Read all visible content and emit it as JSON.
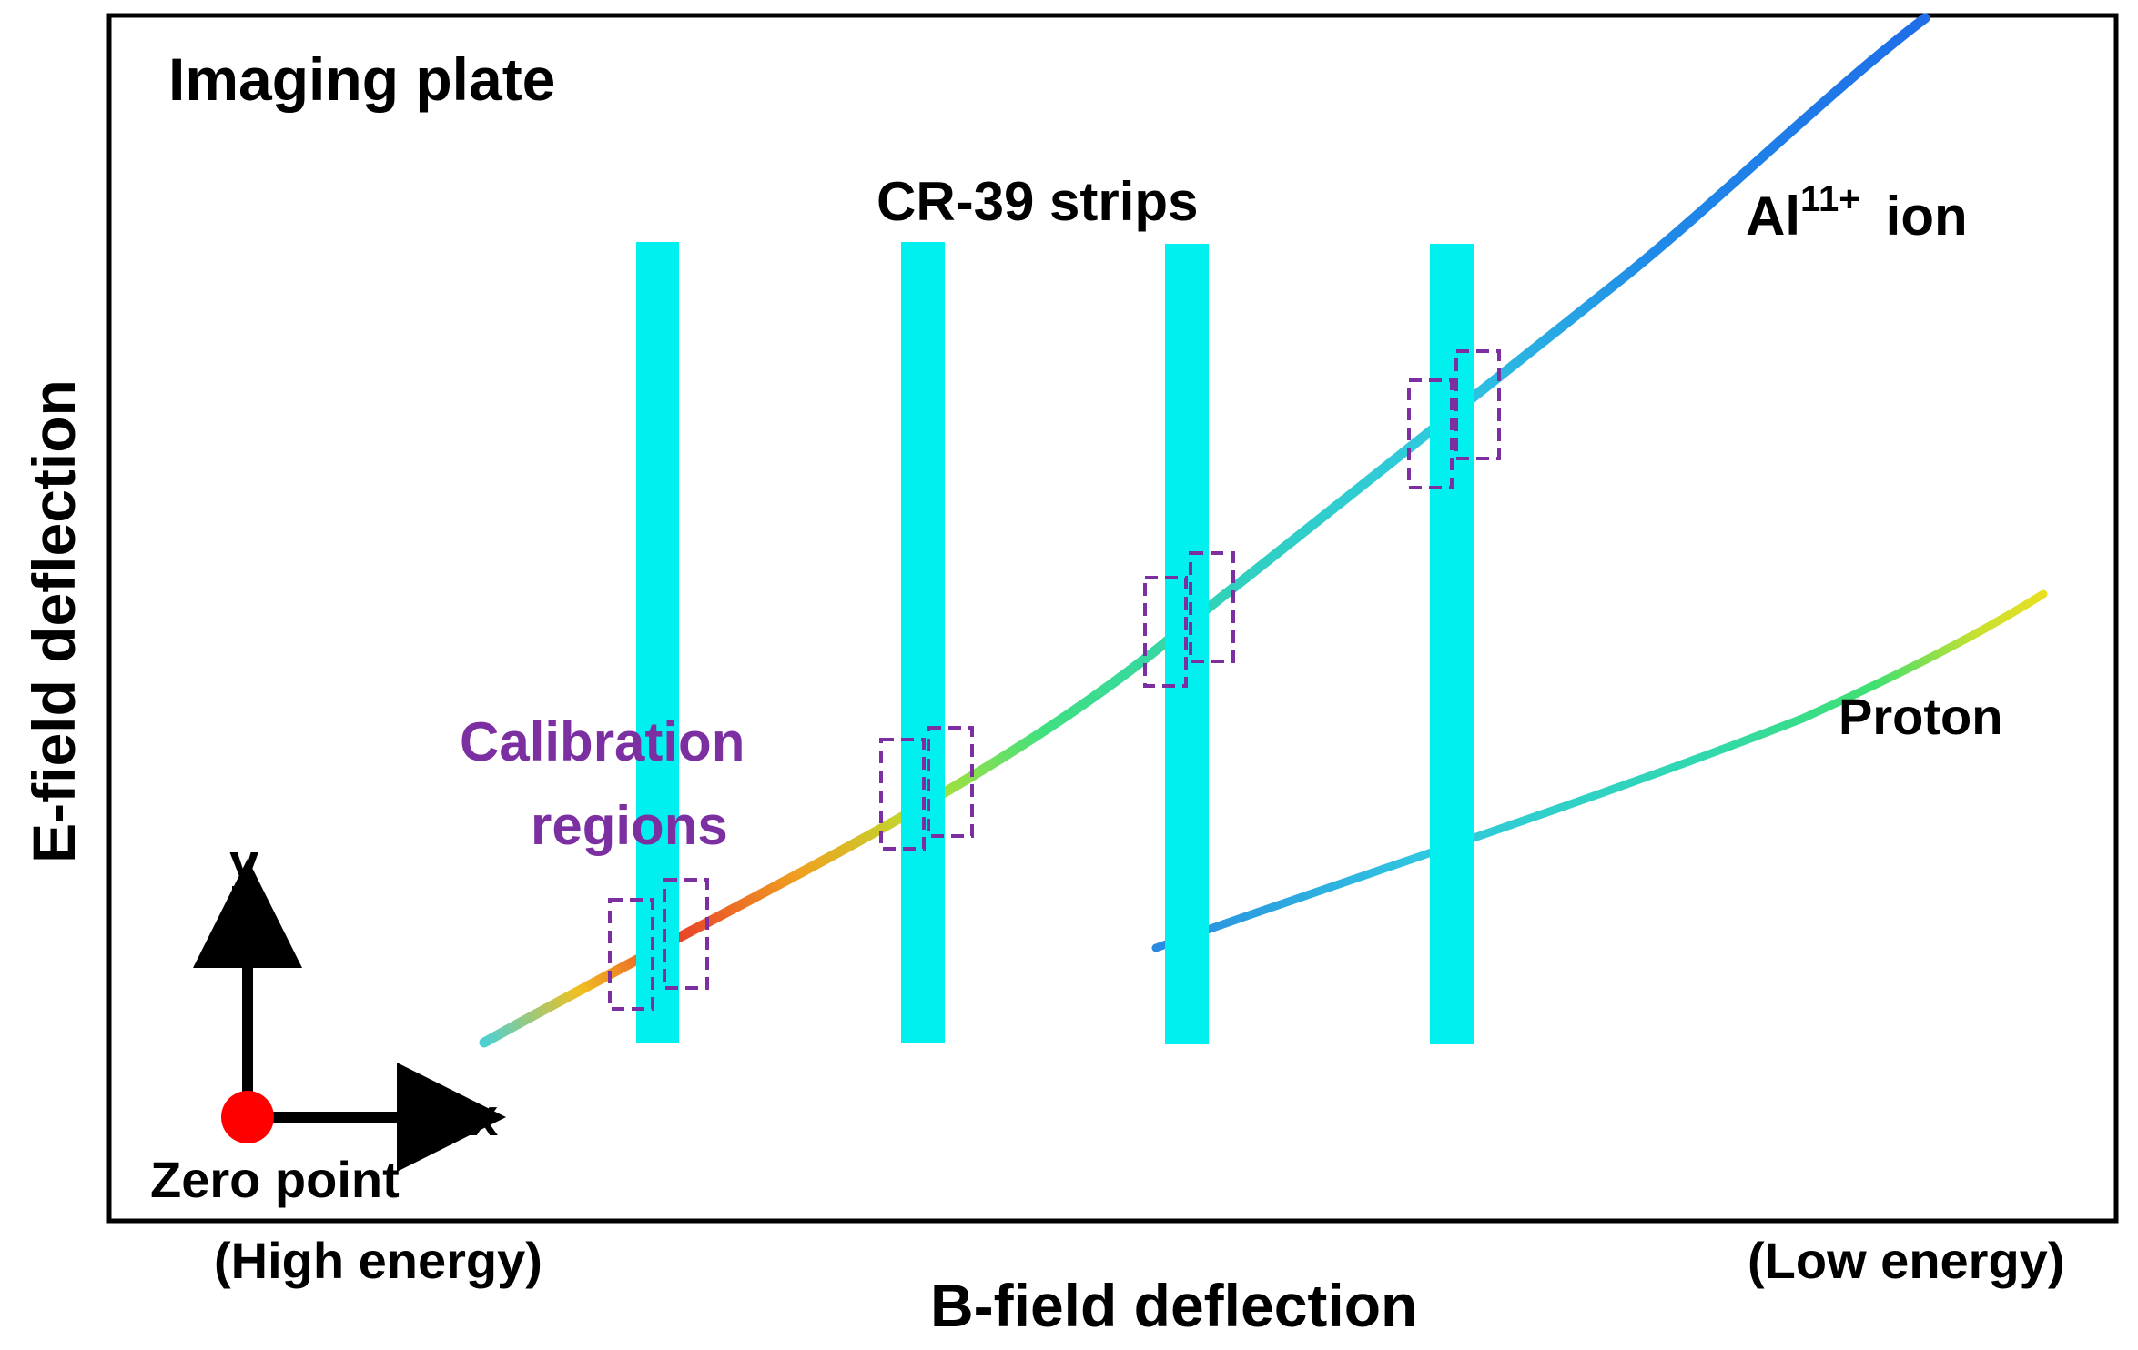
{
  "labels": {
    "plate_title": "Imaging plate",
    "cr39": "CR-39 strips",
    "ion_species": "Al",
    "ion_charge": "11+",
    "ion_word": "ion",
    "proton": "Proton",
    "calibration_line1": "Calibration",
    "calibration_line2": "regions",
    "axis_y": "y",
    "axis_x": "x",
    "zero_point": "Zero point",
    "high_energy": "(High energy)",
    "low_energy": "(Low energy)",
    "x_axis_title": "B-field deflection",
    "y_axis_title": "E-field deflection"
  },
  "colors": {
    "strip": "#00F0F0",
    "calibration": "#7B2FA0",
    "zero_point": "#FF0000",
    "frame": "#000000",
    "ion_track_start": "#4fd0d0",
    "ion_track_hot": "#e8402a",
    "ion_track_end": "#1f6ee8",
    "proton_track_start": "#2a8ae0",
    "proton_track_end": "#e8e020"
  },
  "cr39_strip_count": 4,
  "calibration_region_count": 4
}
